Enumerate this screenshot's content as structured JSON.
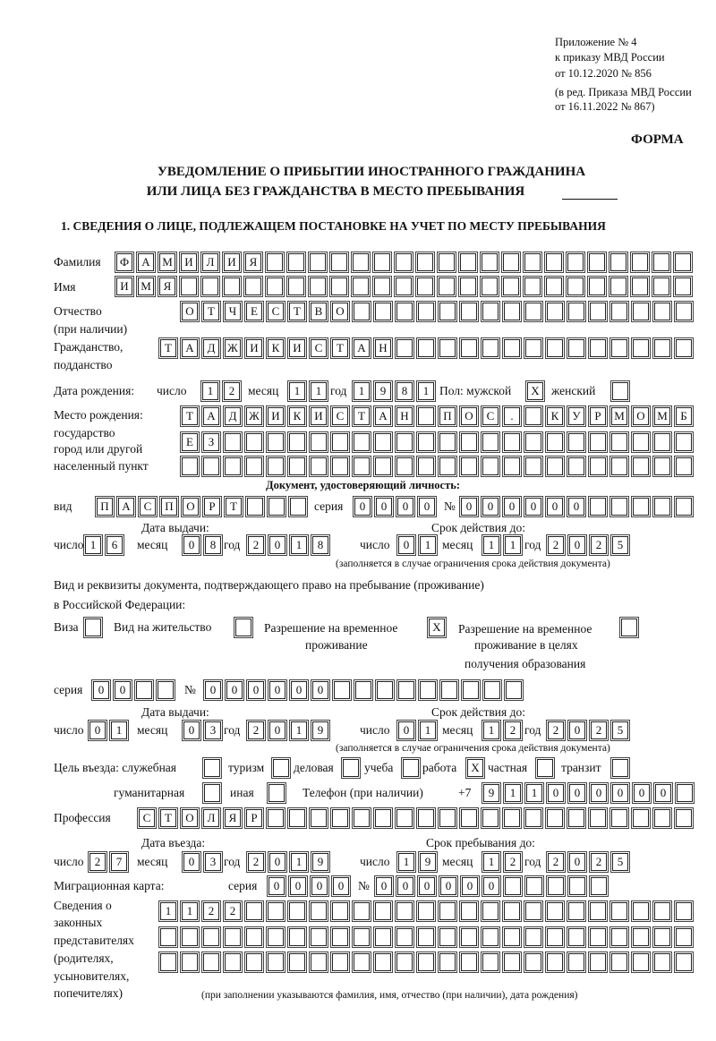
{
  "header": {
    "appendix": "Приложение № 4",
    "order": "к приказу МВД России",
    "order_date": "от 10.12.2020 № 856",
    "revision1": "(в ред. Приказа МВД России",
    "revision2": "от 16.11.2022 № 867)",
    "form_label": "ФОРМА",
    "title1": "УВЕДОМЛЕНИЕ О ПРИБЫТИИ ИНОСТРАННОГО ГРАЖДАНИНА",
    "title2": "ИЛИ ЛИЦА БЕЗ ГРАЖДАНСТВА В МЕСТО ПРЕБЫВАНИЯ",
    "section1": "1. СВЕДЕНИЯ О ЛИЦЕ, ПОДЛЕЖАЩЕМ ПОСТАНОВКЕ НА УЧЕТ ПО МЕСТУ ПРЕБЫВАНИЯ"
  },
  "labels": {
    "surname": "Фамилия",
    "name": "Имя",
    "patronymic": "Отчество",
    "patronymic_note": "(при наличии)",
    "citizenship": "Гражданство,",
    "citizenship2": "подданство",
    "birth_date": "Дата рождения:",
    "day": "число",
    "month": "месяц",
    "year": "год",
    "sex": "Пол: мужской",
    "female": "женский",
    "birth_place": "Место рождения:",
    "state": "государство",
    "city": "город или другой",
    "settlement": "населенный пункт",
    "id_doc": "Документ, удостоверяющий личность:",
    "kind": "вид",
    "series": "серия",
    "number": "№",
    "issue_date": "Дата выдачи:",
    "valid_until": "Срок действия до:",
    "validity_note": "(заполняется в случае ограничения срока действия документа)",
    "stay_doc1": "Вид и реквизиты документа, подтверждающего право на пребывание (проживание)",
    "stay_doc2": "в Российской Федерации:",
    "visa": "Виза",
    "residence": "Вид на жительство",
    "trp1": "Разрешение на временное",
    "trp2": "проживание",
    "trp_edu1": "Разрешение на временное",
    "trp_edu2": "проживание в целях",
    "trp_edu3": "получения образования",
    "purpose": "Цель въезда: служебная",
    "tourism": "туризм",
    "business": "деловая",
    "study": "учеба",
    "work": "работа",
    "private": "частная",
    "transit": "транзит",
    "humanitarian": "гуманитарная",
    "other": "иная",
    "phone": "Телефон (при наличии)",
    "phone_prefix": "+7",
    "profession": "Профессия",
    "entry_date": "Дата въезда:",
    "stay_until": "Срок пребывания до:",
    "migration_card": "Миграционная карта:",
    "reps1": "Сведения о",
    "reps2": "законных",
    "reps3": "представителях",
    "reps4": "(родителях,",
    "reps5": "усыновителях,",
    "reps6": "попечителях)",
    "reps_note": "(при заполнении указываются фамилия, имя, отчество (при наличии), дата рождения)"
  },
  "person": {
    "surname": "ФАМИЛИЯ",
    "name": "ИМЯ",
    "patronymic": "ОТЧЕСТВО",
    "citizenship": "ТАДЖИКИСТАН",
    "birth_day": "12",
    "birth_month": "11",
    "birth_year": "1981",
    "sex_male": "X",
    "sex_female": "",
    "birth_place1": "ТАДЖИКИСТАН ПОС. КУРМОМБ",
    "birth_place2": "ЕЗ",
    "birth_place3": ""
  },
  "id_document": {
    "kind": "ПАСПОРТ",
    "series": "0000",
    "number": "000000",
    "issue_day": "16",
    "issue_month": "08",
    "issue_year": "2018",
    "valid_day": "01",
    "valid_month": "11",
    "valid_year": "2025"
  },
  "stay_document": {
    "visa": "",
    "residence_permit": "",
    "temporary_residence": "X",
    "temporary_residence_edu": "",
    "series": "00",
    "number": "000000",
    "issue_day": "01",
    "issue_month": "03",
    "issue_year": "2019",
    "valid_day": "01",
    "valid_month": "12",
    "valid_year": "2025"
  },
  "entry": {
    "official": "",
    "tourism": "",
    "business": "",
    "study": "",
    "work": "X",
    "private": "",
    "transit": "",
    "humanitarian": "",
    "other": "",
    "phone": "911000000",
    "profession": "СТОЛЯР",
    "entry_day": "27",
    "entry_month": "03",
    "entry_year": "2019",
    "stay_day": "19",
    "stay_month": "12",
    "stay_year": "2025",
    "mc_series": "0000",
    "mc_number": "000000"
  },
  "representatives": {
    "row1": "1122",
    "row2": "",
    "row3": ""
  }
}
